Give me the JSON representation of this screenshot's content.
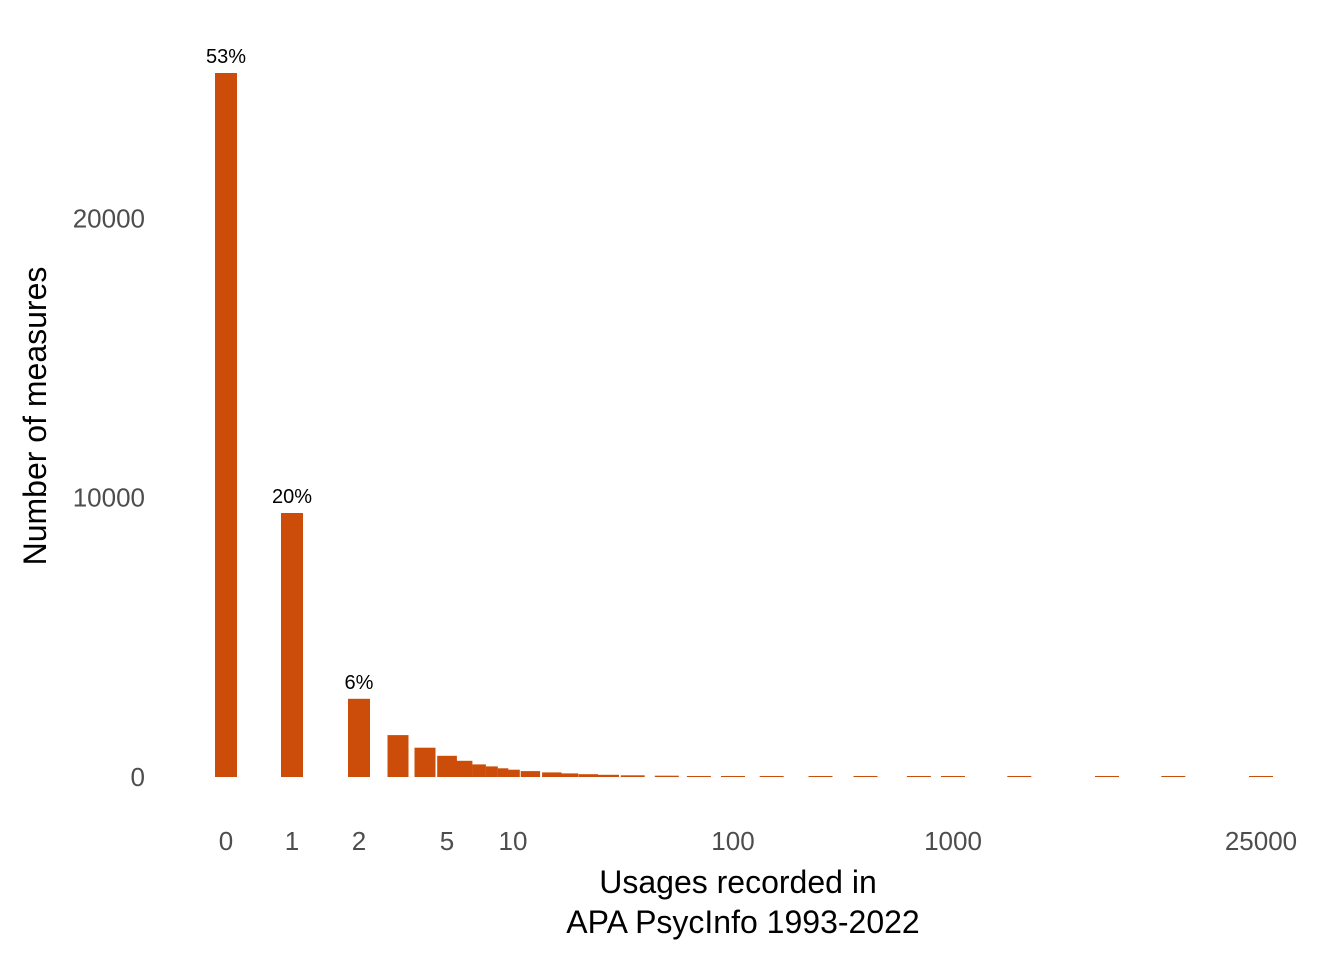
{
  "chart_data": {
    "type": "bar",
    "xlabel_lines": [
      "Usages recorded in",
      "APA PsycInfo 1993-2022"
    ],
    "ylabel": "Number of measures",
    "x_scale": "pseudo-log",
    "x_ticks": [
      "0",
      "1",
      "2",
      "5",
      "10",
      "100",
      "1000",
      "25000"
    ],
    "y_ticks": [
      0,
      10000,
      20000
    ],
    "ylim": [
      0,
      25200
    ],
    "grid": false,
    "bar_color": "#cc4c0a",
    "bars": [
      {
        "x": 0,
        "value": 25200,
        "label": "53%"
      },
      {
        "x": 1,
        "value": 9450,
        "label": "20%"
      },
      {
        "x": 2,
        "value": 2800,
        "label": "6%"
      },
      {
        "x": 3,
        "value": 1500,
        "label": ""
      },
      {
        "x": 4,
        "value": 1050,
        "label": ""
      },
      {
        "x": 5,
        "value": 760,
        "label": ""
      },
      {
        "x": 6,
        "value": 580,
        "label": ""
      },
      {
        "x": 7,
        "value": 450,
        "label": ""
      },
      {
        "x": 8,
        "value": 380,
        "label": ""
      },
      {
        "x": 9,
        "value": 310,
        "label": ""
      },
      {
        "x": 10,
        "value": 260,
        "label": ""
      },
      {
        "x": 12,
        "value": 210,
        "label": ""
      },
      {
        "x": 15,
        "value": 165,
        "label": ""
      },
      {
        "x": 18,
        "value": 130,
        "label": ""
      },
      {
        "x": 22,
        "value": 100,
        "label": ""
      },
      {
        "x": 27,
        "value": 80,
        "label": ""
      },
      {
        "x": 35,
        "value": 60,
        "label": ""
      },
      {
        "x": 50,
        "value": 45,
        "label": ""
      },
      {
        "x": 70,
        "value": 35,
        "label": ""
      },
      {
        "x": 100,
        "value": 28,
        "label": ""
      },
      {
        "x": 150,
        "value": 22,
        "label": ""
      },
      {
        "x": 250,
        "value": 16,
        "label": ""
      },
      {
        "x": 400,
        "value": 12,
        "label": ""
      },
      {
        "x": 700,
        "value": 9,
        "label": ""
      },
      {
        "x": 1000,
        "value": 7,
        "label": ""
      },
      {
        "x": 2000,
        "value": 5,
        "label": ""
      },
      {
        "x": 5000,
        "value": 3,
        "label": ""
      },
      {
        "x": 10000,
        "value": 2,
        "label": ""
      },
      {
        "x": 25000,
        "value": 1,
        "label": ""
      }
    ]
  }
}
